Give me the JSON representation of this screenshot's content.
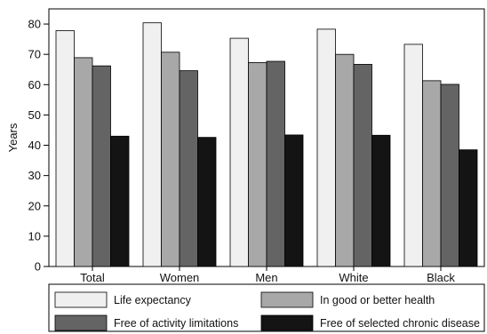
{
  "chart_data": {
    "type": "bar",
    "ylabel": "Years",
    "xlabel": "",
    "title": "",
    "ylim": [
      0,
      85
    ],
    "yticks": [
      0,
      10,
      20,
      30,
      40,
      50,
      60,
      70,
      80
    ],
    "categories": [
      "Total",
      "Women",
      "Men",
      "White",
      "Black"
    ],
    "legend_position": "bottom",
    "grid": false,
    "series": [
      {
        "name": "Life expectancy",
        "color": "#f0f0f0",
        "values": [
          77.8,
          80.4,
          75.3,
          78.3,
          73.3
        ]
      },
      {
        "name": "In good or better health",
        "color": "#a8a8a8",
        "values": [
          68.9,
          70.7,
          67.3,
          70.0,
          61.3
        ]
      },
      {
        "name": "Free of activity limitations",
        "color": "#646464",
        "values": [
          66.2,
          64.6,
          67.7,
          66.7,
          60.1
        ]
      },
      {
        "name": "Free of selected chronic disease",
        "color": "#141414",
        "values": [
          43.0,
          42.6,
          43.4,
          43.3,
          38.5
        ]
      }
    ]
  }
}
